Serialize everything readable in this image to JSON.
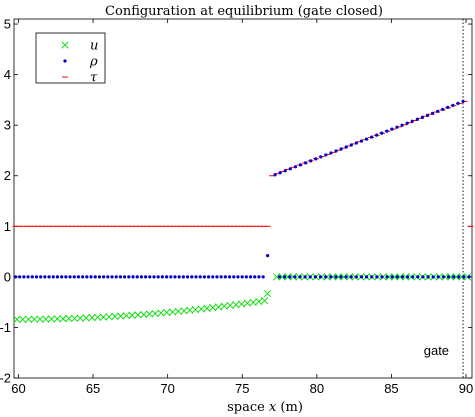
{
  "chart_data": {
    "type": "scatter",
    "title": "Configuration at equilibrium (gate closed)",
    "xlabel_prefix": "space ",
    "xlabel_var": "x",
    "xlabel_unit": " (m)",
    "ylabel": "",
    "xlim": [
      59.7,
      90.4
    ],
    "ylim": [
      -2,
      5.1
    ],
    "xticks": [
      60,
      65,
      70,
      75,
      80,
      85,
      90
    ],
    "yticks": [
      -2,
      -1,
      0,
      1,
      2,
      3,
      4,
      5
    ],
    "grid": false,
    "legend_position": "top-left",
    "annotation": {
      "text": "gate",
      "x": 89.8
    },
    "series": [
      {
        "name": "u",
        "marker": "x",
        "color": "#00dd00",
        "segments": [
          {
            "x_start": 59.9,
            "x_end": 76.5,
            "y_start": -0.84,
            "y_end": -0.47,
            "count": 44,
            "curve": 2.0
          },
          {
            "x": [
              76.7
            ],
            "y": [
              -0.33
            ]
          },
          {
            "x_start": 77.3,
            "x_end": 90.1,
            "y_start": 0.0,
            "y_end": 0.0,
            "count": 35,
            "curve": 1.0
          }
        ]
      },
      {
        "name": "ρ",
        "marker": "dot",
        "color": "#0000cc",
        "segments": [
          {
            "x_start": 59.8,
            "x_end": 76.4,
            "y_start": 0.0,
            "y_end": 0.0,
            "count": 60,
            "curve": 1.0
          },
          {
            "x": [
              76.7
            ],
            "y": [
              0.42
            ]
          },
          {
            "x_start": 77.2,
            "x_end": 89.8,
            "y_start": 2.02,
            "y_end": 3.47,
            "count": 38,
            "curve": 1.0
          },
          {
            "x_start": 77.5,
            "x_end": 90.2,
            "y_start": 0.0,
            "y_end": 0.0,
            "count": 38,
            "curve": 1.0
          }
        ]
      },
      {
        "name": "τ",
        "marker": "dash",
        "color": "#ff0000",
        "segments": [
          {
            "x_start": 59.8,
            "x_end": 76.7,
            "y_start": 1.0,
            "y_end": 1.0,
            "count": 68,
            "curve": 1.0
          },
          {
            "x_start": 77.0,
            "x_end": 89.9,
            "y_start": 2.0,
            "y_end": 3.47,
            "count": 36,
            "curve": 1.0
          },
          {
            "x": [
              90.3
            ],
            "y": [
              1.0
            ]
          }
        ]
      }
    ]
  }
}
